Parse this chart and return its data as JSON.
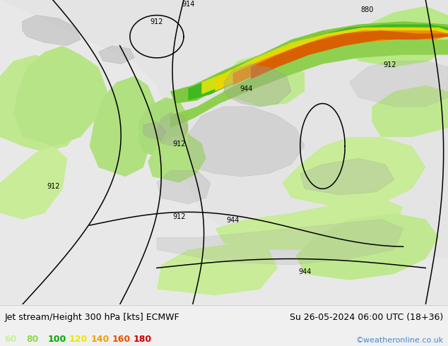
{
  "title_left": "Jet stream/Height 300 hPa [kts] ECMWF",
  "title_right": "Su 26-05-2024 06:00 UTC (18+36)",
  "copyright": "©weatheronline.co.uk",
  "legend_values": [
    "60",
    "80",
    "100",
    "120",
    "140",
    "160",
    "180"
  ],
  "legend_colors": [
    "#c8f0a0",
    "#90d850",
    "#00aa00",
    "#e8e800",
    "#f0a000",
    "#e85000",
    "#cc0000"
  ],
  "fig_width": 6.34,
  "fig_height": 4.9,
  "dpi": 100,
  "title_fontsize": 9,
  "legend_fontsize": 9,
  "map_bg": "#e8e8e8",
  "bottom_bg": "#f0f0f0"
}
